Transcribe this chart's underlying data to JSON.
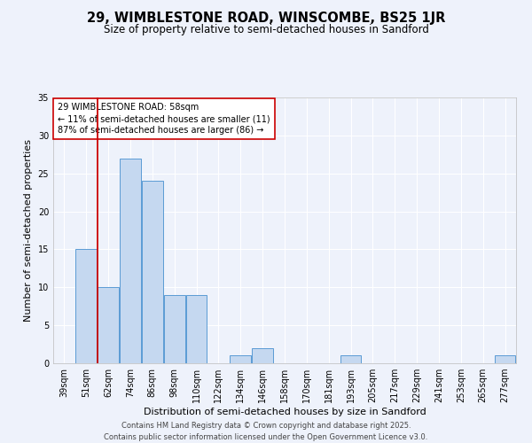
{
  "title_line1": "29, WIMBLESTONE ROAD, WINSCOMBE, BS25 1JR",
  "title_line2": "Size of property relative to semi-detached houses in Sandford",
  "xlabel": "Distribution of semi-detached houses by size in Sandford",
  "ylabel": "Number of semi-detached properties",
  "categories": [
    "39sqm",
    "51sqm",
    "62sqm",
    "74sqm",
    "86sqm",
    "98sqm",
    "110sqm",
    "122sqm",
    "134sqm",
    "146sqm",
    "158sqm",
    "170sqm",
    "181sqm",
    "193sqm",
    "205sqm",
    "217sqm",
    "229sqm",
    "241sqm",
    "253sqm",
    "265sqm",
    "277sqm"
  ],
  "values": [
    0,
    15,
    10,
    27,
    24,
    9,
    9,
    0,
    1,
    2,
    0,
    0,
    0,
    1,
    0,
    0,
    0,
    0,
    0,
    0,
    1
  ],
  "bar_color": "#c5d8f0",
  "bar_edge_color": "#5b9bd5",
  "bar_edge_width": 0.7,
  "red_line_x": 1.5,
  "annotation_text": "29 WIMBLESTONE ROAD: 58sqm\n← 11% of semi-detached houses are smaller (11)\n87% of semi-detached houses are larger (86) →",
  "annotation_box_color": "#ffffff",
  "annotation_box_edge_color": "#cc0000",
  "ylim": [
    0,
    35
  ],
  "yticks": [
    0,
    5,
    10,
    15,
    20,
    25,
    30,
    35
  ],
  "background_color": "#eef2fb",
  "grid_color": "#ffffff",
  "footer_line1": "Contains HM Land Registry data © Crown copyright and database right 2025.",
  "footer_line2": "Contains public sector information licensed under the Open Government Licence v3.0.",
  "title_fontsize": 10.5,
  "subtitle_fontsize": 8.5,
  "axis_label_fontsize": 8,
  "tick_fontsize": 7,
  "annotation_fontsize": 7,
  "footer_fontsize": 6
}
